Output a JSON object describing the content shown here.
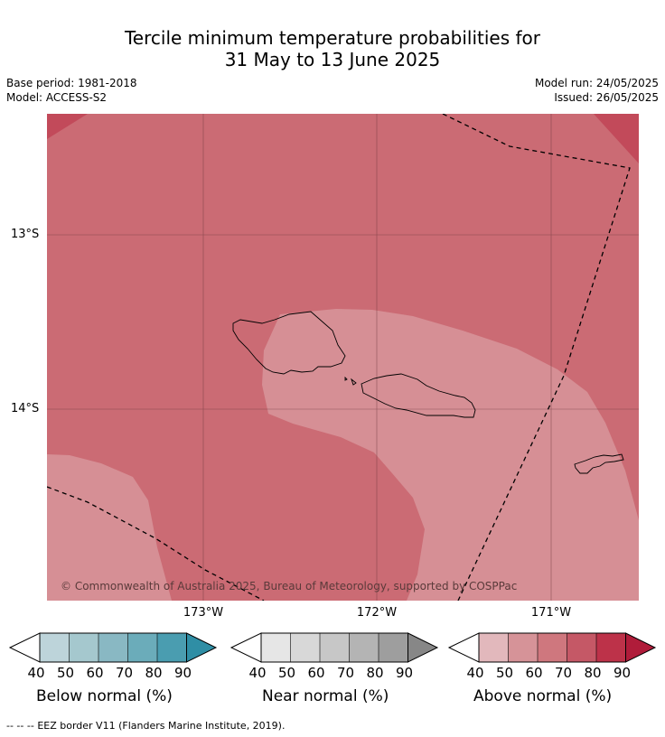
{
  "title": {
    "line1": "Tercile minimum temperature probabilities for",
    "line2": "31 May to 13 June 2025"
  },
  "meta": {
    "base_period": "Base period: 1981-2018",
    "model": "Model: ACCESS-S2",
    "model_run": "Model run: 24/05/2025",
    "issued": "Issued: 26/05/2025"
  },
  "map": {
    "lat_labels": [
      "13°S",
      "14°S"
    ],
    "lon_labels": [
      "173°W",
      "172°W",
      "171°W"
    ],
    "copyright": "© Commonwealth of Australia 2025, Bureau of Meteorology, supported by COSPPac",
    "region_colors": {
      "70-80": "#cb6b74",
      "60-70": "#d68f95",
      "80-90": "#c24a5a"
    }
  },
  "legends": [
    {
      "title": "Below normal (%)",
      "ticks": [
        "40",
        "50",
        "60",
        "70",
        "80",
        "90"
      ],
      "colors": [
        "#bdd4da",
        "#a5c8ce",
        "#89b8c3",
        "#6bacba",
        "#4a9db0",
        "#2f8ea5"
      ]
    },
    {
      "title": "Near normal (%)",
      "ticks": [
        "40",
        "50",
        "60",
        "70",
        "80",
        "90"
      ],
      "colors": [
        "#e6e6e6",
        "#d8d8d8",
        "#c7c7c7",
        "#b4b4b4",
        "#9e9e9e",
        "#878787"
      ]
    },
    {
      "title": "Above normal (%)",
      "ticks": [
        "40",
        "50",
        "60",
        "70",
        "80",
        "90"
      ],
      "colors": [
        "#e2b8bc",
        "#d69398",
        "#cf777e",
        "#c55866",
        "#bd3249",
        "#b01c3a"
      ]
    }
  ],
  "footer": {
    "eez_symbol": "-- -- --",
    "eez_note": "EEZ border V11 (Flanders Marine Institute, 2019)."
  }
}
